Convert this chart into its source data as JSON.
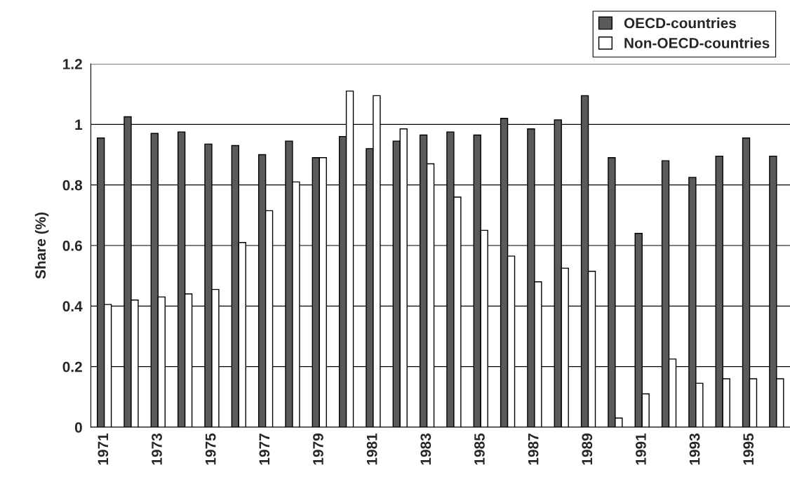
{
  "chart_data": {
    "type": "bar",
    "ylabel": "Share (%)",
    "categories": [
      "1971",
      null,
      "1973",
      null,
      "1975",
      null,
      "1977",
      null,
      "1979",
      null,
      "1981",
      null,
      "1983",
      null,
      "1985",
      null,
      "1987",
      null,
      "1989",
      null,
      "1991",
      null,
      "1993",
      null,
      "1995",
      null
    ],
    "series": [
      {
        "name": "OECD-countries",
        "color": "#5a5a5a",
        "values": [
          0.955,
          1.025,
          0.97,
          0.975,
          0.935,
          0.93,
          0.9,
          0.945,
          0.89,
          0.96,
          0.92,
          0.945,
          0.965,
          0.975,
          0.965,
          1.02,
          0.985,
          1.015,
          1.095,
          0.89,
          0.64,
          0.88,
          0.825,
          0.895,
          0.955,
          0.895
        ]
      },
      {
        "name": "Non-OECD-countries",
        "color": "#ffffff",
        "values": [
          0.405,
          0.42,
          0.43,
          0.44,
          0.455,
          0.61,
          0.715,
          0.81,
          0.89,
          1.11,
          1.095,
          0.985,
          0.87,
          0.76,
          0.65,
          0.565,
          0.48,
          0.525,
          0.515,
          0.03,
          0.11,
          0.225,
          0.145,
          0.16,
          0.16,
          0.16
        ]
      }
    ],
    "ylim": [
      0,
      1.2
    ],
    "yticks": [
      0,
      0.2,
      0.4,
      0.6,
      0.8,
      1,
      1.2
    ],
    "grid": "y",
    "legend": "top right"
  }
}
